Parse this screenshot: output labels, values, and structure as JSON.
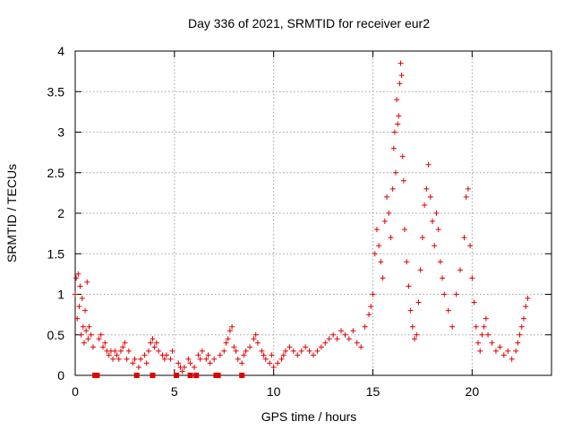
{
  "chart_data": {
    "type": "scatter",
    "title": "Day 336 of 2021, SRMTID for receiver eur2",
    "xlabel": "GPS time / hours",
    "ylabel": "SRMTID / TECUs",
    "xlim": [
      0,
      24
    ],
    "ylim": [
      0,
      4
    ],
    "xticks": [
      0,
      5,
      10,
      15,
      20
    ],
    "yticks": [
      0,
      0.5,
      1,
      1.5,
      2,
      2.5,
      3,
      3.5,
      4
    ],
    "xtick_labels": [
      "0",
      "5",
      "10",
      "15",
      "20"
    ],
    "ytick_labels": [
      "0",
      "0.5",
      "1",
      "1.5",
      "2",
      "2.5",
      "3",
      "3.5",
      "4"
    ],
    "grid": true,
    "marker": "plus",
    "color": "#e00000",
    "series": [
      {
        "name": "SRMTID",
        "points": [
          [
            0.0,
            1.0
          ],
          [
            0.05,
            1.2
          ],
          [
            0.1,
            0.7
          ],
          [
            0.15,
            1.25
          ],
          [
            0.2,
            0.85
          ],
          [
            0.25,
            1.1
          ],
          [
            0.3,
            0.5
          ],
          [
            0.35,
            0.95
          ],
          [
            0.4,
            0.6
          ],
          [
            0.45,
            0.4
          ],
          [
            0.5,
            0.8
          ],
          [
            0.55,
            0.55
          ],
          [
            0.6,
            1.15
          ],
          [
            0.65,
            0.45
          ],
          [
            0.7,
            0.6
          ],
          [
            0.8,
            0.5
          ],
          [
            0.9,
            0.35
          ],
          [
            1.2,
            0.45
          ],
          [
            1.3,
            0.5
          ],
          [
            1.4,
            0.35
          ],
          [
            1.5,
            0.4
          ],
          [
            1.6,
            0.3
          ],
          [
            1.7,
            0.25
          ],
          [
            1.8,
            0.3
          ],
          [
            1.9,
            0.2
          ],
          [
            2.0,
            0.3
          ],
          [
            2.1,
            0.25
          ],
          [
            2.2,
            0.2
          ],
          [
            2.3,
            0.3
          ],
          [
            2.4,
            0.35
          ],
          [
            2.5,
            0.4
          ],
          [
            2.6,
            0.2
          ],
          [
            2.7,
            0.3
          ],
          [
            2.9,
            0.15
          ],
          [
            3.0,
            0.2
          ],
          [
            3.2,
            0.1
          ],
          [
            3.3,
            0.2
          ],
          [
            3.5,
            0.25
          ],
          [
            3.6,
            0.15
          ],
          [
            3.7,
            0.3
          ],
          [
            3.8,
            0.4
          ],
          [
            3.9,
            0.45
          ],
          [
            4.0,
            0.35
          ],
          [
            4.1,
            0.4
          ],
          [
            4.2,
            0.3
          ],
          [
            4.4,
            0.25
          ],
          [
            4.5,
            0.2
          ],
          [
            4.6,
            0.25
          ],
          [
            4.8,
            0.2
          ],
          [
            4.9,
            0.3
          ],
          [
            5.2,
            0.15
          ],
          [
            5.3,
            0.1
          ],
          [
            5.4,
            0.05
          ],
          [
            5.5,
            0.1
          ],
          [
            5.7,
            0.2
          ],
          [
            5.8,
            0.15
          ],
          [
            6.0,
            0.1
          ],
          [
            6.2,
            0.25
          ],
          [
            6.3,
            0.2
          ],
          [
            6.4,
            0.3
          ],
          [
            6.6,
            0.2
          ],
          [
            6.7,
            0.25
          ],
          [
            6.8,
            0.15
          ],
          [
            7.0,
            0.2
          ],
          [
            7.3,
            0.25
          ],
          [
            7.5,
            0.3
          ],
          [
            7.6,
            0.4
          ],
          [
            7.7,
            0.45
          ],
          [
            7.8,
            0.55
          ],
          [
            7.9,
            0.6
          ],
          [
            8.0,
            0.35
          ],
          [
            8.1,
            0.3
          ],
          [
            8.2,
            0.2
          ],
          [
            8.4,
            0.15
          ],
          [
            8.5,
            0.25
          ],
          [
            8.6,
            0.3
          ],
          [
            8.8,
            0.35
          ],
          [
            9.0,
            0.45
          ],
          [
            9.1,
            0.5
          ],
          [
            9.2,
            0.4
          ],
          [
            9.4,
            0.3
          ],
          [
            9.5,
            0.25
          ],
          [
            9.6,
            0.2
          ],
          [
            9.8,
            0.15
          ],
          [
            9.9,
            0.25
          ],
          [
            10.0,
            0.1
          ],
          [
            10.2,
            0.15
          ],
          [
            10.4,
            0.2
          ],
          [
            10.5,
            0.25
          ],
          [
            10.6,
            0.3
          ],
          [
            10.8,
            0.35
          ],
          [
            11.0,
            0.3
          ],
          [
            11.2,
            0.25
          ],
          [
            11.4,
            0.3
          ],
          [
            11.6,
            0.35
          ],
          [
            11.8,
            0.3
          ],
          [
            12.0,
            0.25
          ],
          [
            12.2,
            0.3
          ],
          [
            12.4,
            0.35
          ],
          [
            12.6,
            0.4
          ],
          [
            12.8,
            0.45
          ],
          [
            13.0,
            0.5
          ],
          [
            13.2,
            0.45
          ],
          [
            13.4,
            0.55
          ],
          [
            13.6,
            0.5
          ],
          [
            13.8,
            0.45
          ],
          [
            14.0,
            0.55
          ],
          [
            14.2,
            0.4
          ],
          [
            14.4,
            0.35
          ],
          [
            14.6,
            0.6
          ],
          [
            14.8,
            0.75
          ],
          [
            14.9,
            0.85
          ],
          [
            15.0,
            1.0
          ],
          [
            15.1,
            1.5
          ],
          [
            15.2,
            1.8
          ],
          [
            15.3,
            1.6
          ],
          [
            15.4,
            1.4
          ],
          [
            15.5,
            1.2
          ],
          [
            15.6,
            1.9
          ],
          [
            15.7,
            2.2
          ],
          [
            15.8,
            2.0
          ],
          [
            15.9,
            1.7
          ],
          [
            16.0,
            2.3
          ],
          [
            16.05,
            2.8
          ],
          [
            16.1,
            3.0
          ],
          [
            16.15,
            2.5
          ],
          [
            16.2,
            3.4
          ],
          [
            16.25,
            3.1
          ],
          [
            16.3,
            3.2
          ],
          [
            16.35,
            3.6
          ],
          [
            16.4,
            3.85
          ],
          [
            16.45,
            3.7
          ],
          [
            16.5,
            2.7
          ],
          [
            16.55,
            2.4
          ],
          [
            16.6,
            1.8
          ],
          [
            16.7,
            1.4
          ],
          [
            16.8,
            1.1
          ],
          [
            16.9,
            0.8
          ],
          [
            17.0,
            0.6
          ],
          [
            17.1,
            0.45
          ],
          [
            17.2,
            0.5
          ],
          [
            17.3,
            0.9
          ],
          [
            17.4,
            1.3
          ],
          [
            17.5,
            1.7
          ],
          [
            17.6,
            2.1
          ],
          [
            17.7,
            2.3
          ],
          [
            17.8,
            2.6
          ],
          [
            17.9,
            2.2
          ],
          [
            18.0,
            1.9
          ],
          [
            18.1,
            1.6
          ],
          [
            18.2,
            2.0
          ],
          [
            18.3,
            1.8
          ],
          [
            18.4,
            1.4
          ],
          [
            18.5,
            1.2
          ],
          [
            18.6,
            1.0
          ],
          [
            18.8,
            0.8
          ],
          [
            19.0,
            0.6
          ],
          [
            19.2,
            1.0
          ],
          [
            19.4,
            1.3
          ],
          [
            19.6,
            1.7
          ],
          [
            19.7,
            2.2
          ],
          [
            19.8,
            2.3
          ],
          [
            19.9,
            1.6
          ],
          [
            20.0,
            1.2
          ],
          [
            20.1,
            0.9
          ],
          [
            20.2,
            0.6
          ],
          [
            20.3,
            0.4
          ],
          [
            20.4,
            0.3
          ],
          [
            20.5,
            0.5
          ],
          [
            20.6,
            0.6
          ],
          [
            20.7,
            0.7
          ],
          [
            20.8,
            0.5
          ],
          [
            21.0,
            0.4
          ],
          [
            21.2,
            0.3
          ],
          [
            21.4,
            0.35
          ],
          [
            21.6,
            0.25
          ],
          [
            21.8,
            0.3
          ],
          [
            22.0,
            0.2
          ],
          [
            22.2,
            0.3
          ],
          [
            22.3,
            0.4
          ],
          [
            22.4,
            0.5
          ],
          [
            22.5,
            0.6
          ],
          [
            22.6,
            0.7
          ],
          [
            22.7,
            0.85
          ],
          [
            22.8,
            0.95
          ]
        ]
      }
    ],
    "gap_markers_x": [
      1.0,
      1.1,
      3.1,
      3.9,
      5.1,
      5.8,
      6.1,
      7.1,
      7.2,
      8.4
    ]
  }
}
